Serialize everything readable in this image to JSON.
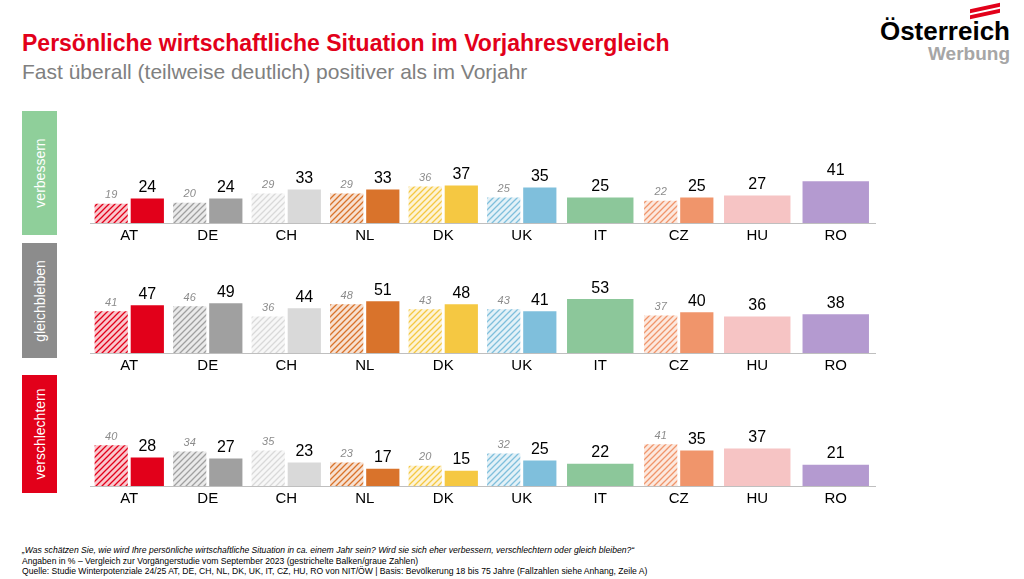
{
  "header": {
    "title": "Persönliche wirtschaftliche Situation im Vorjahresvergleich",
    "subtitle": "Fast überall (teilweise deutlich) positiver als im Vorjahr",
    "logo": [
      "Österreich",
      "Werbung"
    ]
  },
  "chart_data": [
    {
      "type": "bar",
      "title": "verbessern",
      "color": "#8fcf9a",
      "categories": [
        "AT",
        "DE",
        "CH",
        "NL",
        "DK",
        "UK",
        "IT",
        "CZ",
        "HU",
        "RO"
      ],
      "series": [
        {
          "line_style": "hatched",
          "colors": [
            "#e2001a",
            "#a0a0a0",
            "#d9d9d9",
            "#d9732b",
            "#f5c842",
            "#7fbfdc",
            "#8cc79a",
            "#f0956b",
            "#f6c4c4",
            "#b49ad0"
          ],
          "values": [
            19,
            20,
            29,
            29,
            36,
            25,
            null,
            22,
            null,
            null
          ]
        },
        {
          "line_style": "solid",
          "colors": [
            "#e2001a",
            "#a0a0a0",
            "#d9d9d9",
            "#d9732b",
            "#f5c842",
            "#7fbfdc",
            "#8cc79a",
            "#f0956b",
            "#f6c4c4",
            "#b49ad0"
          ],
          "values": [
            24,
            24,
            33,
            33,
            37,
            35,
            25,
            25,
            27,
            41
          ]
        }
      ],
      "ylim": [
        0,
        60
      ],
      "yticks": [
        0,
        60
      ],
      "grid": false,
      "data_labels": true,
      "tick_labels": "x"
    },
    {
      "type": "bar",
      "title": "gleichbleiben",
      "color": "#8c8c8c",
      "categories": [
        "AT",
        "DE",
        "CH",
        "NL",
        "DK",
        "UK",
        "IT",
        "CZ",
        "HU",
        "RO"
      ],
      "series": [
        {
          "line_style": "hatched",
          "colors": [
            "#e2001a",
            "#a0a0a0",
            "#d9d9d9",
            "#d9732b",
            "#f5c842",
            "#7fbfdc",
            "#8cc79a",
            "#f0956b",
            "#f6c4c4",
            "#b49ad0"
          ],
          "values": [
            41,
            46,
            36,
            48,
            43,
            43,
            null,
            37,
            null,
            null
          ]
        },
        {
          "line_style": "solid",
          "colors": [
            "#e2001a",
            "#a0a0a0",
            "#d9d9d9",
            "#d9732b",
            "#f5c842",
            "#7fbfdc",
            "#8cc79a",
            "#f0956b",
            "#f6c4c4",
            "#b49ad0"
          ],
          "values": [
            47,
            49,
            44,
            51,
            48,
            41,
            53,
            40,
            36,
            38
          ]
        }
      ],
      "ylim": [
        0,
        60
      ],
      "yticks": [
        0,
        60
      ],
      "grid": false,
      "data_labels": true,
      "tick_labels": "x"
    },
    {
      "type": "bar",
      "title": "verschlechtern",
      "color": "#e2001a",
      "categories": [
        "AT",
        "DE",
        "CH",
        "NL",
        "DK",
        "UK",
        "IT",
        "CZ",
        "HU",
        "RO"
      ],
      "series": [
        {
          "line_style": "hatched",
          "colors": [
            "#e2001a",
            "#a0a0a0",
            "#d9d9d9",
            "#d9732b",
            "#f5c842",
            "#7fbfdc",
            "#8cc79a",
            "#f0956b",
            "#f6c4c4",
            "#b49ad0"
          ],
          "values": [
            40,
            34,
            35,
            23,
            20,
            32,
            null,
            41,
            null,
            null
          ]
        },
        {
          "line_style": "solid",
          "colors": [
            "#e2001a",
            "#a0a0a0",
            "#d9d9d9",
            "#d9732b",
            "#f5c842",
            "#7fbfdc",
            "#8cc79a",
            "#f0956b",
            "#f6c4c4",
            "#b49ad0"
          ],
          "values": [
            28,
            27,
            23,
            17,
            15,
            25,
            22,
            35,
            37,
            21
          ]
        }
      ],
      "ylim": [
        0,
        60
      ],
      "yticks": [
        0,
        60
      ],
      "grid": false,
      "data_labels": true,
      "tick_labels": "x"
    }
  ],
  "footer": {
    "question": "„Was schätzen Sie, wie wird Ihre persönliche wirtschaftliche Situation in ca. einem Jahr sein? Wird sie sich eher verbessern, verschlechtern oder gleich bleiben?“",
    "notes": [
      "Angaben in % – Vergleich zur Vorgängerstudie vom September 2023 (gestrichelte Balken/graue Zahlen)",
      "Quelle: Studie Winterpotenziale 24/25 AT, DE, CH, NL, DK, UK, IT, CZ, HU, RO von NIT/ÖW | Basis: Bevölkerung 18 bis 75 Jahre (Fallzahlen siehe Anhang, Zeile A)"
    ]
  }
}
